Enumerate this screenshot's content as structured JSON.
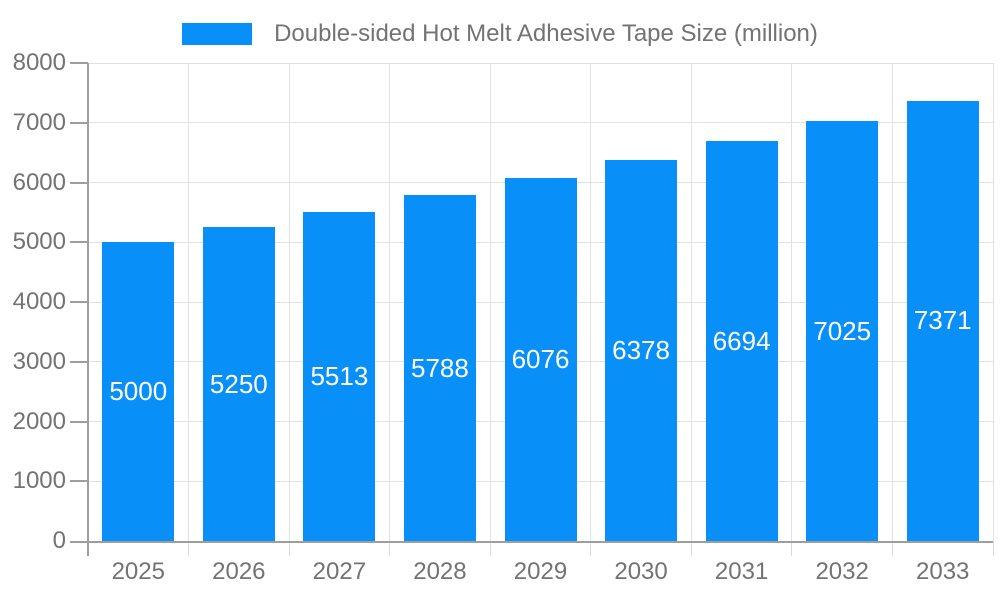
{
  "chart_data": {
    "type": "bar",
    "title": "Double-sided Hot Melt Adhesive Tape Size (million)",
    "legend_entries": [
      "Double-sided Hot Melt Adhesive Tape Size (million)"
    ],
    "legend_position": "top",
    "categories": [
      "2025",
      "2026",
      "2027",
      "2028",
      "2029",
      "2030",
      "2031",
      "2032",
      "2033"
    ],
    "values": [
      5000,
      5250,
      5513,
      5788,
      6076,
      6378,
      6694,
      7025,
      7371
    ],
    "bar_labels": [
      "5000",
      "5250",
      "5513",
      "5788",
      "6076",
      "6378",
      "6694",
      "7025",
      "7371"
    ],
    "xlabel": "",
    "ylabel": "",
    "ylim": [
      0,
      8000
    ],
    "ytick_step": 1000,
    "y_tick_labels": [
      "0",
      "1000",
      "2000",
      "3000",
      "4000",
      "5000",
      "6000",
      "7000",
      "8000"
    ],
    "grid": true,
    "colors": {
      "bar": "#0990F8",
      "bar_label": "#FFFFFF",
      "axis_line": "#9E9E9E",
      "gridline": "#E2E2E2",
      "x_tick_mark": "#D9D9D9",
      "tick_text": "#737373",
      "legend_text": "#737373",
      "background": "#FFFFFF"
    }
  }
}
